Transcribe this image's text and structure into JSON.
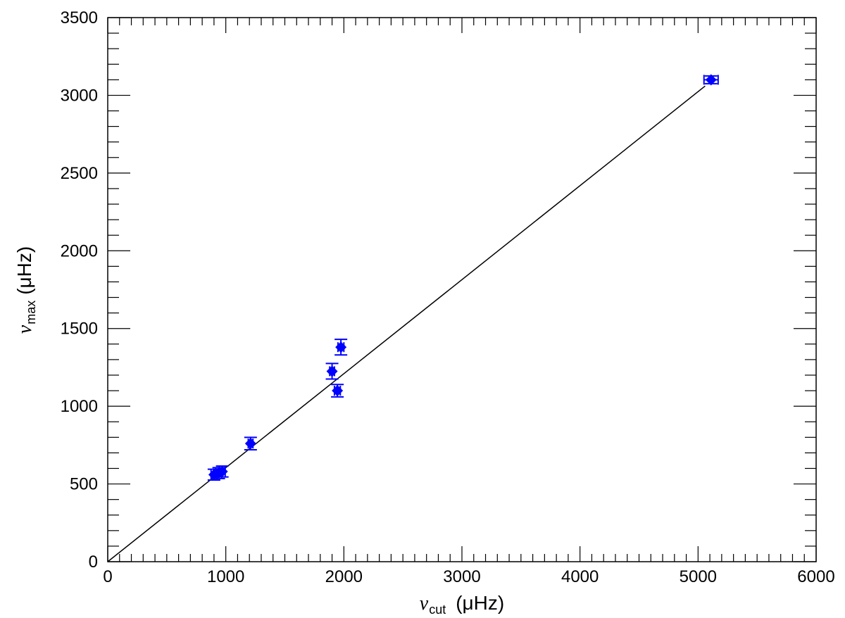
{
  "chart_data": {
    "type": "scatter",
    "x_range": [
      0,
      6000
    ],
    "y_range": [
      0,
      3500
    ],
    "x_ticks": [
      0,
      1000,
      2000,
      3000,
      4000,
      5000,
      6000
    ],
    "y_ticks": [
      0,
      500,
      1000,
      1500,
      2000,
      2500,
      3000,
      3500
    ],
    "x_tick_labels": [
      "0",
      "1000",
      "2000",
      "3000",
      "4000",
      "5000",
      "6000"
    ],
    "y_tick_labels": [
      "0",
      "500",
      "1000",
      "1500",
      "2000",
      "2500",
      "3000",
      "3500"
    ],
    "xlabel": {
      "symbol": "ν",
      "subscript": "cut",
      "unit": "(μHz)"
    },
    "ylabel": {
      "symbol": "ν",
      "subscript": "max",
      "unit": "(μHz)"
    },
    "grid": false,
    "marker_color": "#0000ff",
    "line_color": "#000000",
    "points": [
      {
        "x": 900,
        "y": 560,
        "xerr": 25,
        "yerr": 35
      },
      {
        "x": 940,
        "y": 570,
        "xerr": 25,
        "yerr": 35
      },
      {
        "x": 970,
        "y": 580,
        "xerr": 25,
        "yerr": 35
      },
      {
        "x": 1210,
        "y": 760,
        "xerr": 20,
        "yerr": 40
      },
      {
        "x": 1900,
        "y": 1225,
        "xerr": 20,
        "yerr": 50
      },
      {
        "x": 1945,
        "y": 1100,
        "xerr": 25,
        "yerr": 40
      },
      {
        "x": 1975,
        "y": 1380,
        "xerr": 25,
        "yerr": 50
      },
      {
        "x": 5110,
        "y": 3100,
        "xerr": 60,
        "yerr": 25
      }
    ],
    "fit_line": {
      "x": [
        0,
        5060
      ],
      "y": [
        0,
        3060
      ]
    }
  }
}
